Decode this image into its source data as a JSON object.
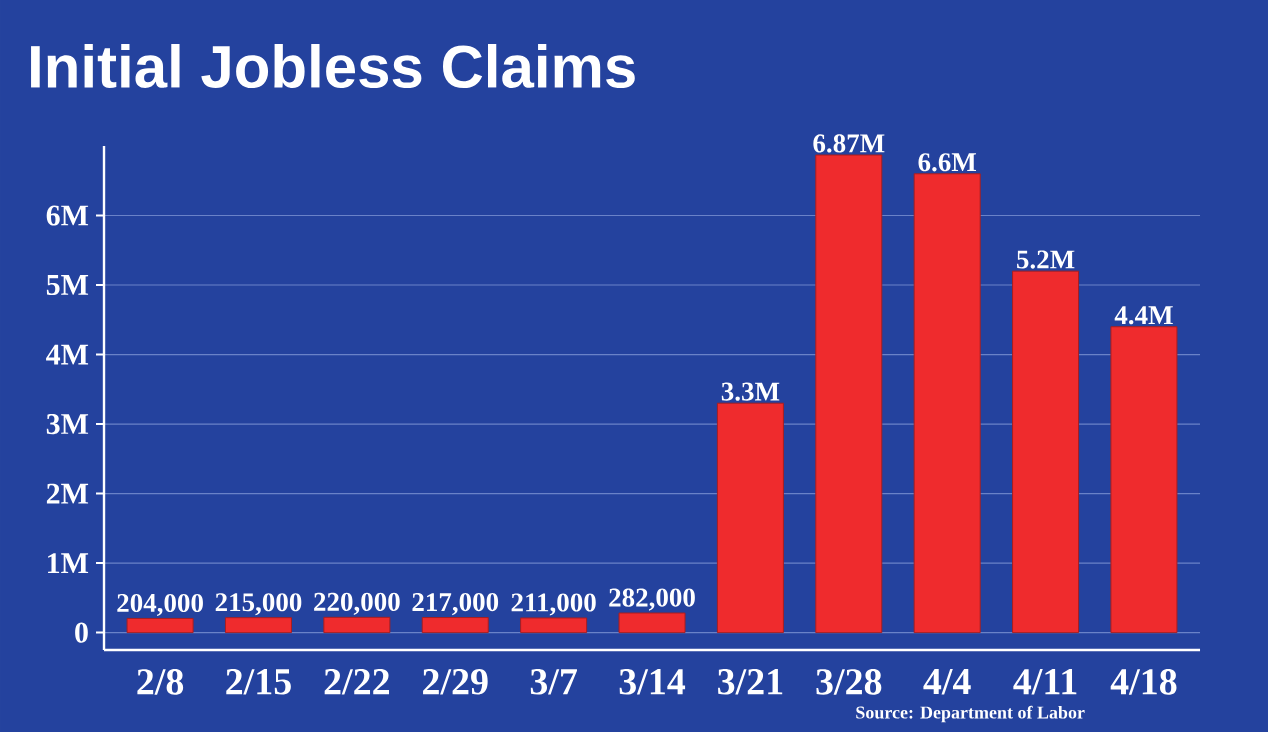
{
  "chart_data": {
    "type": "bar",
    "title": "Initial Jobless Claims",
    "categories": [
      "2/8",
      "2/15",
      "2/22",
      "2/29",
      "3/7",
      "3/14",
      "3/21",
      "3/28",
      "4/4",
      "4/11",
      "4/18"
    ],
    "values": [
      204000,
      215000,
      220000,
      217000,
      211000,
      282000,
      3300000,
      6870000,
      6600000,
      5200000,
      4400000
    ],
    "value_labels": [
      "204,000",
      "215,000",
      "220,000",
      "217,000",
      "211,000",
      "282,000",
      "3.3M",
      "6.87M",
      "6.6M",
      "5.2M",
      "4.4M"
    ],
    "color": "#ef2b2d",
    "ylim": [
      -250000,
      7000000
    ],
    "yticks": [
      0,
      {
        "value": 1000000,
        "label": "1M"
      },
      {
        "value": 2000000,
        "label": "2M"
      },
      {
        "value": 3000000,
        "label": "3M"
      },
      {
        "value": 4000000,
        "label": "4M"
      },
      {
        "value": 5000000,
        "label": "5M"
      },
      {
        "value": 6000000,
        "label": "6M"
      }
    ],
    "grid": "y",
    "annotations": [
      "Source: Department of Labor"
    ]
  }
}
